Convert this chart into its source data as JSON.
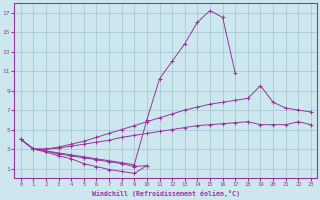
{
  "xlabel": "Windchill (Refroidissement éolien,°C)",
  "bg_color": "#cce8ee",
  "line_color": "#993399",
  "grid_color": "#99bbcc",
  "xlim": [
    -0.5,
    23.5
  ],
  "ylim": [
    0.0,
    18.0
  ],
  "xticks": [
    0,
    1,
    2,
    3,
    4,
    5,
    6,
    7,
    8,
    9,
    10,
    11,
    12,
    13,
    14,
    15,
    16,
    17,
    18,
    19,
    20,
    21,
    22,
    23
  ],
  "yticks": [
    1,
    3,
    5,
    7,
    9,
    11,
    13,
    15,
    17
  ],
  "curves": [
    {
      "x": [
        0,
        1,
        2,
        3,
        4,
        5,
        6,
        7,
        8,
        9,
        10
      ],
      "y": [
        4.0,
        3.0,
        2.7,
        2.3,
        2.0,
        1.5,
        1.2,
        0.9,
        0.7,
        0.5,
        1.3
      ]
    },
    {
      "x": [
        0,
        1,
        2,
        3,
        4,
        5,
        6,
        7,
        8,
        9,
        10
      ],
      "y": [
        4.0,
        3.0,
        2.8,
        2.5,
        2.3,
        2.1,
        1.9,
        1.7,
        1.5,
        1.2,
        1.3
      ]
    },
    {
      "x": [
        0,
        1,
        2,
        3,
        4,
        5,
        6,
        7,
        8,
        9,
        10,
        11,
        12,
        13,
        14,
        15,
        16,
        17
      ],
      "y": [
        4.0,
        3.0,
        2.8,
        2.6,
        2.4,
        2.2,
        2.0,
        1.8,
        1.6,
        1.4,
        6.0,
        10.2,
        12.0,
        13.8,
        16.0,
        17.2,
        16.5,
        10.8
      ]
    },
    {
      "x": [
        0,
        1,
        2,
        3,
        4,
        5,
        6,
        7,
        8,
        9,
        10,
        11,
        12,
        13,
        14,
        15,
        16,
        17,
        18,
        19,
        20,
        21,
        22,
        23
      ],
      "y": [
        4.0,
        3.0,
        3.0,
        3.2,
        3.5,
        3.8,
        4.2,
        4.6,
        5.0,
        5.4,
        5.8,
        6.2,
        6.6,
        7.0,
        7.3,
        7.6,
        7.8,
        8.0,
        8.2,
        9.5,
        7.8,
        7.2,
        7.0,
        6.8
      ]
    },
    {
      "x": [
        0,
        1,
        2,
        3,
        4,
        5,
        6,
        7,
        8,
        9,
        10,
        11,
        12,
        13,
        14,
        15,
        16,
        17,
        18,
        19,
        20,
        21,
        22,
        23
      ],
      "y": [
        4.0,
        3.0,
        3.0,
        3.1,
        3.3,
        3.5,
        3.7,
        3.9,
        4.2,
        4.4,
        4.6,
        4.8,
        5.0,
        5.2,
        5.4,
        5.5,
        5.6,
        5.7,
        5.8,
        5.5,
        5.5,
        5.5,
        5.8,
        5.5
      ]
    }
  ]
}
